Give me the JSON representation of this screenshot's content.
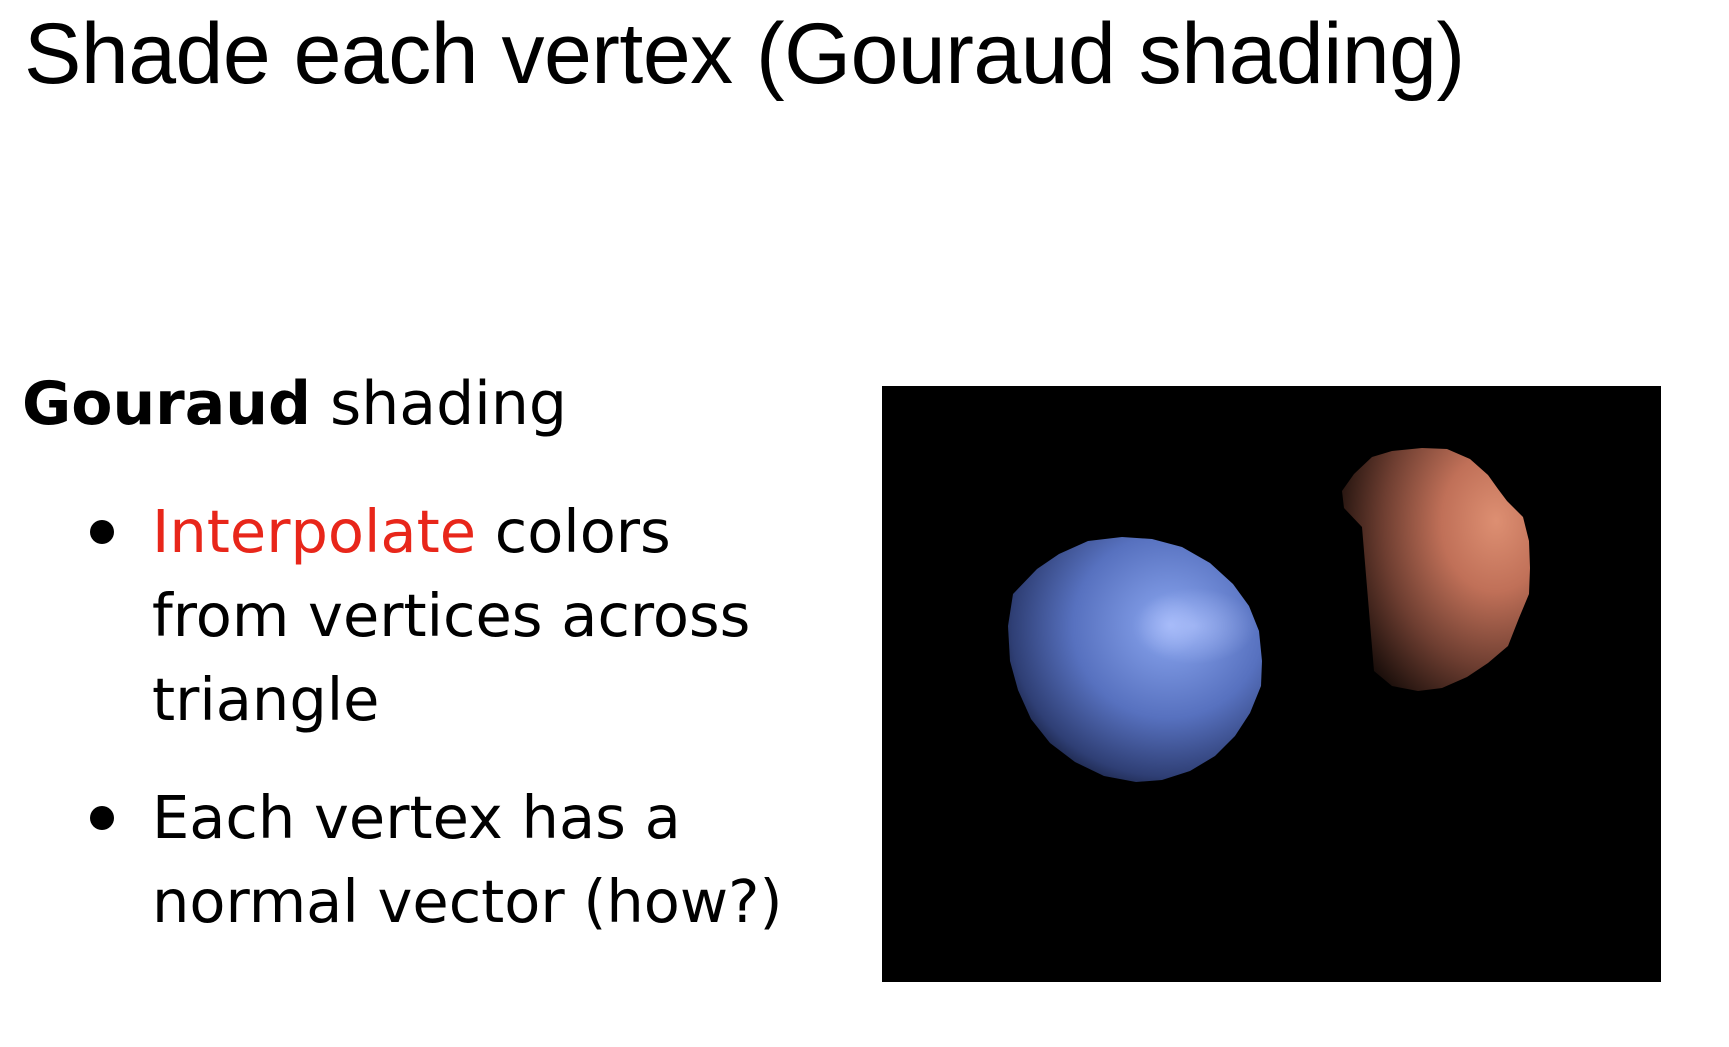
{
  "title": "Shade each vertex (Gouraud shading)",
  "subtitle": {
    "bold": "Gouraud",
    "rest": " shading"
  },
  "bullets": [
    {
      "highlight": "Interpolate",
      "text": " colors from vertices across triangle"
    },
    {
      "highlight": "",
      "text": "Each vertex has a normal vector (how?)"
    }
  ],
  "colors": {
    "highlight": "#e8261a",
    "background": "#ffffff",
    "panel_background": "#000000",
    "blue_sphere": "#6f8ad6",
    "orange_sphere": "#c87a60"
  },
  "illustration": {
    "objects": [
      "blue-sphere",
      "orange-sphere"
    ]
  }
}
